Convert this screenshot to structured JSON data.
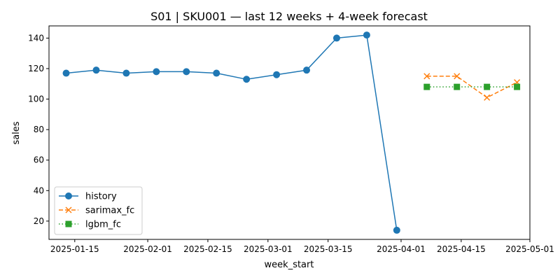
{
  "chart_data": {
    "type": "line",
    "title": "S01 | SKU001 — last 12 weeks + 4-week forecast",
    "xlabel": "week_start",
    "ylabel": "sales",
    "xlim": [
      "2025-01-09",
      "2025-05-01"
    ],
    "ylim": [
      8,
      148
    ],
    "x_ticks": [
      "2025-01-15",
      "2025-02-01",
      "2025-02-15",
      "2025-03-01",
      "2025-03-15",
      "2025-04-01",
      "2025-04-15",
      "2025-05-01"
    ],
    "y_ticks": [
      20,
      40,
      60,
      80,
      100,
      120,
      140
    ],
    "grid": false,
    "legend_position": "lower-left",
    "series": [
      {
        "name": "history",
        "color": "#1f77b4",
        "style": "solid",
        "marker": "circle",
        "x": [
          "2025-01-13",
          "2025-01-20",
          "2025-01-27",
          "2025-02-03",
          "2025-02-10",
          "2025-02-17",
          "2025-02-24",
          "2025-03-03",
          "2025-03-10",
          "2025-03-17",
          "2025-03-24",
          "2025-03-31"
        ],
        "values": [
          117,
          119,
          117,
          118,
          118,
          117,
          113,
          116,
          119,
          140,
          142,
          14
        ]
      },
      {
        "name": "sarimax_fc",
        "color": "#ff7f0e",
        "style": "dashed",
        "marker": "x",
        "x": [
          "2025-04-07",
          "2025-04-14",
          "2025-04-21",
          "2025-04-28"
        ],
        "values": [
          115,
          115,
          101,
          111
        ]
      },
      {
        "name": "lgbm_fc",
        "color": "#2ca02c",
        "style": "dotted",
        "marker": "square",
        "x": [
          "2025-04-07",
          "2025-04-14",
          "2025-04-21",
          "2025-04-28"
        ],
        "values": [
          108,
          108,
          108,
          108
        ]
      }
    ]
  }
}
